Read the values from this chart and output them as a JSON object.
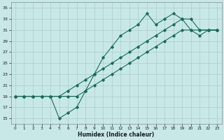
{
  "xlabel": "Humidex (Indice chaleur)",
  "xlim": [
    -0.5,
    23.5
  ],
  "ylim": [
    14,
    36
  ],
  "yticks": [
    15,
    17,
    19,
    21,
    23,
    25,
    27,
    29,
    31,
    33,
    35
  ],
  "xticks": [
    0,
    1,
    2,
    3,
    4,
    5,
    6,
    7,
    8,
    9,
    10,
    11,
    12,
    13,
    14,
    15,
    16,
    17,
    18,
    19,
    20,
    21,
    22,
    23
  ],
  "bg_color": "#c8e8e8",
  "grid_color": "#a8cccc",
  "line_color": "#1a6b5a",
  "line1_x": [
    0,
    1,
    2,
    3,
    4,
    5,
    6,
    7,
    8,
    9,
    10,
    11,
    12,
    13,
    14,
    15,
    16,
    17,
    18,
    19,
    20,
    21,
    22,
    23
  ],
  "line1_y": [
    19,
    19,
    19,
    19,
    19,
    15,
    16,
    17,
    20,
    23,
    26,
    28,
    30,
    31,
    32,
    34,
    32,
    33,
    34,
    33,
    31,
    30,
    31,
    31
  ],
  "line2_x": [
    0,
    1,
    2,
    3,
    4,
    5,
    6,
    7,
    8,
    9,
    10,
    11,
    12,
    13,
    14,
    15,
    16,
    17,
    18,
    19,
    20,
    21,
    22,
    23
  ],
  "line2_y": [
    19,
    19,
    19,
    19,
    19,
    19,
    20,
    21,
    22,
    23,
    24,
    25,
    26,
    27,
    28,
    29,
    30,
    31,
    32,
    33,
    33,
    31,
    31,
    31
  ],
  "line3_x": [
    0,
    1,
    2,
    3,
    4,
    5,
    6,
    7,
    8,
    9,
    10,
    11,
    12,
    13,
    14,
    15,
    16,
    17,
    18,
    19,
    20,
    21,
    22,
    23
  ],
  "line3_y": [
    19,
    19,
    19,
    19,
    19,
    19,
    19,
    19,
    20,
    21,
    22,
    23,
    24,
    25,
    26,
    27,
    28,
    29,
    30,
    31,
    31,
    31,
    31,
    31
  ]
}
